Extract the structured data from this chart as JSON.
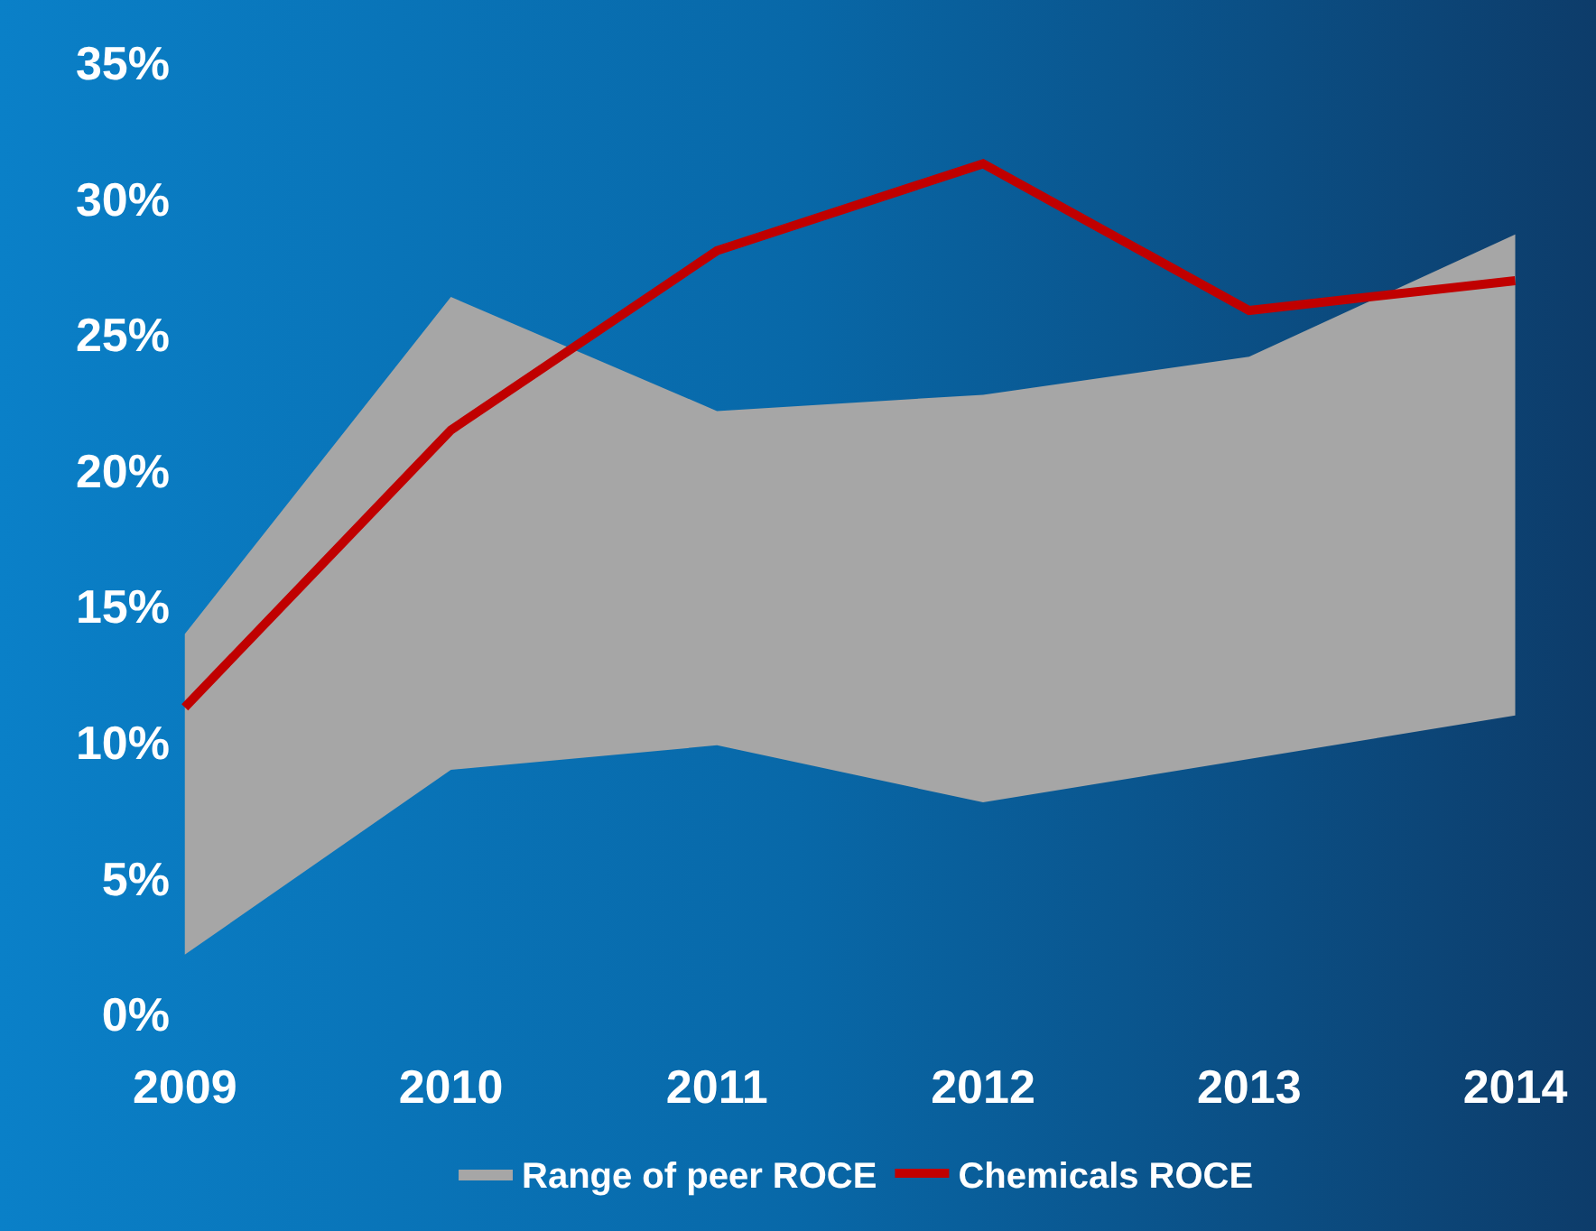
{
  "chart_data": {
    "type": "line",
    "categories": [
      "2009",
      "2010",
      "2011",
      "2012",
      "2013",
      "2014"
    ],
    "series": [
      {
        "name": "Range of peer ROCE",
        "type": "area",
        "color": "#a6a6a6",
        "values": [
          null,
          null,
          null,
          null,
          null,
          null
        ],
        "lower": [
          2.2,
          9.0,
          9.9,
          7.8,
          9.4,
          11.0
        ],
        "upper": [
          14.0,
          26.4,
          22.2,
          22.8,
          24.2,
          28.7
        ]
      },
      {
        "name": "Chemicals ROCE",
        "type": "line",
        "color": "#c00000",
        "values": [
          11.3,
          21.5,
          28.1,
          31.3,
          25.9,
          27.0
        ]
      }
    ],
    "ylim": [
      0,
      35
    ],
    "yticks": [
      {
        "value": 0,
        "label": "0%"
      },
      {
        "value": 5,
        "label": "5%"
      },
      {
        "value": 10,
        "label": "10%"
      },
      {
        "value": 15,
        "label": "15%"
      },
      {
        "value": 20,
        "label": "20%"
      },
      {
        "value": 25,
        "label": "25%"
      },
      {
        "value": 30,
        "label": "30%"
      },
      {
        "value": 35,
        "label": "35%"
      }
    ],
    "grid": false,
    "legend": "bottom",
    "marker": "none",
    "line_style": "solid"
  }
}
